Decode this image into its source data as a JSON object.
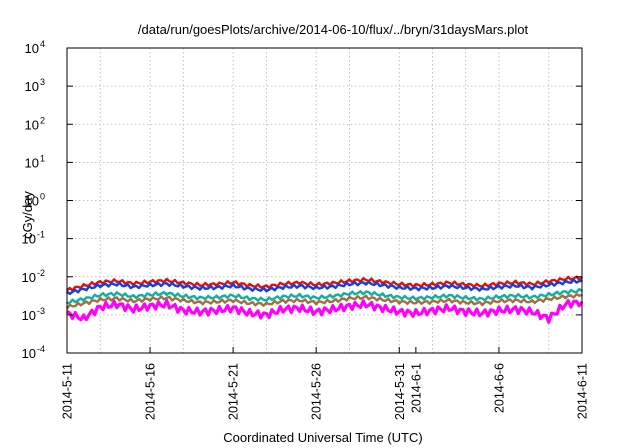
{
  "chart_data": {
    "type": "line",
    "title": "/data/run/goesPlots/archive/2014-06-10/flux/../bryn/31daysMars.plot",
    "xlabel": "Coordinated Universal Time (UTC)",
    "ylabel": "cGy/day",
    "yscale": "log",
    "ylim": [
      0.0001,
      10000
    ],
    "xlim": [
      "2014-05-11",
      "2014-06-11"
    ],
    "grid": true,
    "y_ticks": [
      {
        "value": 0.0001,
        "base": "10",
        "exp": "-4"
      },
      {
        "value": 0.001,
        "base": "10",
        "exp": "-3"
      },
      {
        "value": 0.01,
        "base": "10",
        "exp": "-2"
      },
      {
        "value": 0.1,
        "base": "10",
        "exp": "-1"
      },
      {
        "value": 1,
        "base": "10",
        "exp": "0"
      },
      {
        "value": 10,
        "base": "10",
        "exp": "1"
      },
      {
        "value": 100,
        "base": "10",
        "exp": "2"
      },
      {
        "value": 1000,
        "base": "10",
        "exp": "3"
      },
      {
        "value": 10000,
        "base": "10",
        "exp": "4"
      }
    ],
    "x_ticks": [
      {
        "value": "2014-05-11",
        "label": "2014-5-11"
      },
      {
        "value": "2014-05-16",
        "label": "2014-5-16"
      },
      {
        "value": "2014-05-21",
        "label": "2014-5-21"
      },
      {
        "value": "2014-05-26",
        "label": "2014-5-26"
      },
      {
        "value": "2014-05-31",
        "label": "2014-5-31"
      },
      {
        "value": "2014-06-01",
        "label": "2014-6-1"
      },
      {
        "value": "2014-06-06",
        "label": "2014-6-6"
      },
      {
        "value": "2014-06-11",
        "label": "2014-6-11"
      }
    ],
    "x_grid_dates": [
      "2014-05-13",
      "2014-05-16",
      "2014-05-18",
      "2014-05-21",
      "2014-05-23",
      "2014-05-26",
      "2014-05-28",
      "2014-05-31",
      "2014-06-02",
      "2014-06-04",
      "2014-06-06",
      "2014-06-09"
    ],
    "series": [
      {
        "color": "#e01010",
        "values": [
          [
            "2014-05-11",
            0.0045
          ],
          [
            "2014-05-12",
            0.0058
          ],
          [
            "2014-05-13",
            0.0072
          ],
          [
            "2014-05-14",
            0.0078
          ],
          [
            "2014-05-15",
            0.0066
          ],
          [
            "2014-05-16",
            0.0074
          ],
          [
            "2014-05-17",
            0.008
          ],
          [
            "2014-05-18",
            0.0069
          ],
          [
            "2014-05-19",
            0.0061
          ],
          [
            "2014-05-20",
            0.0064
          ],
          [
            "2014-05-21",
            0.0071
          ],
          [
            "2014-05-22",
            0.0059
          ],
          [
            "2014-05-23",
            0.0055
          ],
          [
            "2014-05-24",
            0.0065
          ],
          [
            "2014-05-25",
            0.007
          ],
          [
            "2014-05-26",
            0.0062
          ],
          [
            "2014-05-27",
            0.0068
          ],
          [
            "2014-05-28",
            0.0078
          ],
          [
            "2014-05-29",
            0.0084
          ],
          [
            "2014-05-30",
            0.0073
          ],
          [
            "2014-05-31",
            0.0064
          ],
          [
            "2014-06-01",
            0.006
          ],
          [
            "2014-06-02",
            0.0063
          ],
          [
            "2014-06-03",
            0.007
          ],
          [
            "2014-06-04",
            0.0062
          ],
          [
            "2014-06-05",
            0.0058
          ],
          [
            "2014-06-06",
            0.0066
          ],
          [
            "2014-06-07",
            0.0071
          ],
          [
            "2014-06-08",
            0.0064
          ],
          [
            "2014-06-09",
            0.0075
          ],
          [
            "2014-06-10",
            0.0088
          ],
          [
            "2014-06-11",
            0.0095
          ]
        ]
      },
      {
        "color": "#1040e0",
        "values": [
          [
            "2014-05-11",
            0.0037
          ],
          [
            "2014-05-12",
            0.0047
          ],
          [
            "2014-05-13",
            0.0059
          ],
          [
            "2014-05-14",
            0.0064
          ],
          [
            "2014-05-15",
            0.0054
          ],
          [
            "2014-05-16",
            0.006
          ],
          [
            "2014-05-17",
            0.0065
          ],
          [
            "2014-05-18",
            0.0056
          ],
          [
            "2014-05-19",
            0.005
          ],
          [
            "2014-05-20",
            0.0052
          ],
          [
            "2014-05-21",
            0.0058
          ],
          [
            "2014-05-22",
            0.0048
          ],
          [
            "2014-05-23",
            0.0045
          ],
          [
            "2014-05-24",
            0.0053
          ],
          [
            "2014-05-25",
            0.0057
          ],
          [
            "2014-05-26",
            0.0051
          ],
          [
            "2014-05-27",
            0.0055
          ],
          [
            "2014-05-28",
            0.0064
          ],
          [
            "2014-05-29",
            0.0069
          ],
          [
            "2014-05-30",
            0.006
          ],
          [
            "2014-05-31",
            0.0052
          ],
          [
            "2014-06-01",
            0.0049
          ],
          [
            "2014-06-02",
            0.0051
          ],
          [
            "2014-06-03",
            0.0057
          ],
          [
            "2014-06-04",
            0.0051
          ],
          [
            "2014-06-05",
            0.0047
          ],
          [
            "2014-06-06",
            0.0054
          ],
          [
            "2014-06-07",
            0.0058
          ],
          [
            "2014-06-08",
            0.0052
          ],
          [
            "2014-06-09",
            0.0061
          ],
          [
            "2014-06-10",
            0.0072
          ],
          [
            "2014-06-11",
            0.0078
          ]
        ]
      },
      {
        "color": "#10b0a0",
        "values": [
          [
            "2014-05-11",
            0.0021
          ],
          [
            "2014-05-12",
            0.0026
          ],
          [
            "2014-05-13",
            0.0033
          ],
          [
            "2014-05-14",
            0.0036
          ],
          [
            "2014-05-15",
            0.003
          ],
          [
            "2014-05-16",
            0.0034
          ],
          [
            "2014-05-17",
            0.0037
          ],
          [
            "2014-05-18",
            0.0031
          ],
          [
            "2014-05-19",
            0.0028
          ],
          [
            "2014-05-20",
            0.0029
          ],
          [
            "2014-05-21",
            0.0032
          ],
          [
            "2014-05-22",
            0.0027
          ],
          [
            "2014-05-23",
            0.0025
          ],
          [
            "2014-05-24",
            0.003
          ],
          [
            "2014-05-25",
            0.0032
          ],
          [
            "2014-05-26",
            0.0028
          ],
          [
            "2014-05-27",
            0.0031
          ],
          [
            "2014-05-28",
            0.0036
          ],
          [
            "2014-05-29",
            0.0039
          ],
          [
            "2014-05-30",
            0.0033
          ],
          [
            "2014-05-31",
            0.0029
          ],
          [
            "2014-06-01",
            0.0027
          ],
          [
            "2014-06-02",
            0.0029
          ],
          [
            "2014-06-03",
            0.0032
          ],
          [
            "2014-06-04",
            0.0028
          ],
          [
            "2014-06-05",
            0.0026
          ],
          [
            "2014-06-06",
            0.003
          ],
          [
            "2014-06-07",
            0.0032
          ],
          [
            "2014-06-08",
            0.0029
          ],
          [
            "2014-06-09",
            0.0034
          ],
          [
            "2014-06-10",
            0.004
          ],
          [
            "2014-06-11",
            0.0043
          ]
        ]
      },
      {
        "color": "#a07040",
        "values": [
          [
            "2014-05-11",
            0.0016
          ],
          [
            "2014-05-12",
            0.002
          ],
          [
            "2014-05-13",
            0.0025
          ],
          [
            "2014-05-14",
            0.0027
          ],
          [
            "2014-05-15",
            0.0023
          ],
          [
            "2014-05-16",
            0.0026
          ],
          [
            "2014-05-17",
            0.0028
          ],
          [
            "2014-05-18",
            0.0024
          ],
          [
            "2014-05-19",
            0.0021
          ],
          [
            "2014-05-20",
            0.0022
          ],
          [
            "2014-05-21",
            0.0024
          ],
          [
            "2014-05-22",
            0.002
          ],
          [
            "2014-05-23",
            0.0019
          ],
          [
            "2014-05-24",
            0.0023
          ],
          [
            "2014-05-25",
            0.0024
          ],
          [
            "2014-05-26",
            0.0021
          ],
          [
            "2014-05-27",
            0.0023
          ],
          [
            "2014-05-28",
            0.0027
          ],
          [
            "2014-05-29",
            0.0029
          ],
          [
            "2014-05-30",
            0.0025
          ],
          [
            "2014-05-31",
            0.0022
          ],
          [
            "2014-06-01",
            0.0021
          ],
          [
            "2014-06-02",
            0.0022
          ],
          [
            "2014-06-03",
            0.0024
          ],
          [
            "2014-06-04",
            0.0021
          ],
          [
            "2014-06-05",
            0.002
          ],
          [
            "2014-06-06",
            0.0023
          ],
          [
            "2014-06-07",
            0.0024
          ],
          [
            "2014-06-08",
            0.0022
          ],
          [
            "2014-06-09",
            0.0026
          ],
          [
            "2014-06-10",
            0.003
          ],
          [
            "2014-06-11",
            0.0033
          ]
        ]
      },
      {
        "color": "#ff00ff",
        "values": [
          [
            "2014-05-11",
            0.0011
          ],
          [
            "2014-05-12",
            0.0008
          ],
          [
            "2014-05-13",
            0.0016
          ],
          [
            "2014-05-14",
            0.0019
          ],
          [
            "2014-05-15",
            0.0014
          ],
          [
            "2014-05-16",
            0.0017
          ],
          [
            "2014-05-17",
            0.0019
          ],
          [
            "2014-05-18",
            0.0013
          ],
          [
            "2014-05-19",
            0.0012
          ],
          [
            "2014-05-20",
            0.0013
          ],
          [
            "2014-05-21",
            0.0015
          ],
          [
            "2014-05-22",
            0.0011
          ],
          [
            "2014-05-23",
            0.001
          ],
          [
            "2014-05-24",
            0.0014
          ],
          [
            "2014-05-25",
            0.0015
          ],
          [
            "2014-05-26",
            0.0012
          ],
          [
            "2014-05-27",
            0.0014
          ],
          [
            "2014-05-28",
            0.0017
          ],
          [
            "2014-05-29",
            0.0019
          ],
          [
            "2014-05-30",
            0.0015
          ],
          [
            "2014-05-31",
            0.0012
          ],
          [
            "2014-06-01",
            0.0011
          ],
          [
            "2014-06-02",
            0.0013
          ],
          [
            "2014-06-03",
            0.0015
          ],
          [
            "2014-06-04",
            0.0012
          ],
          [
            "2014-06-05",
            0.0011
          ],
          [
            "2014-06-06",
            0.0013
          ],
          [
            "2014-06-07",
            0.0014
          ],
          [
            "2014-06-08",
            0.0012
          ],
          [
            "2014-06-09",
            0.0008
          ],
          [
            "2014-06-10",
            0.0019
          ],
          [
            "2014-06-11",
            0.0022
          ]
        ]
      }
    ]
  }
}
